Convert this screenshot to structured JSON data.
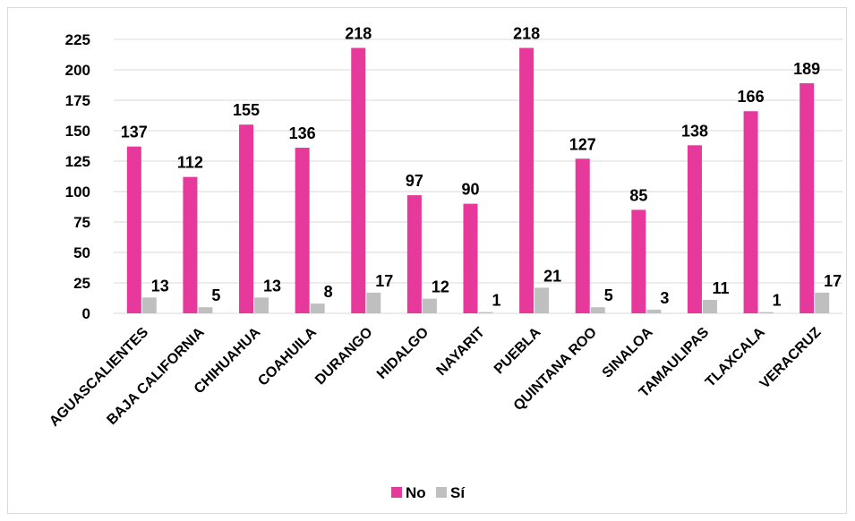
{
  "chart_data": {
    "type": "bar",
    "categories": [
      "AGUASCALIENTES",
      "BAJA CALIFORNIA",
      "CHIHUAHUA",
      "COAHUILA",
      "DURANGO",
      "HIDALGO",
      "NAYARIT",
      "PUEBLA",
      "QUINTANA ROO",
      "SINALOA",
      "TAMAULIPAS",
      "TLAXCALA",
      "VERACRUZ"
    ],
    "series": [
      {
        "name": "No",
        "color": "#e6399b",
        "values": [
          137,
          112,
          155,
          136,
          218,
          97,
          90,
          218,
          127,
          85,
          138,
          166,
          189
        ]
      },
      {
        "name": "Sí",
        "color": "#bfbfbf",
        "values": [
          13,
          5,
          13,
          8,
          17,
          12,
          1,
          21,
          5,
          3,
          11,
          1,
          17
        ]
      }
    ],
    "ylim": [
      0,
      225
    ],
    "yticks": [
      0,
      25,
      50,
      75,
      100,
      125,
      150,
      175,
      200,
      225
    ],
    "grid": true,
    "legend_position": "bottom",
    "data_labels": true
  }
}
